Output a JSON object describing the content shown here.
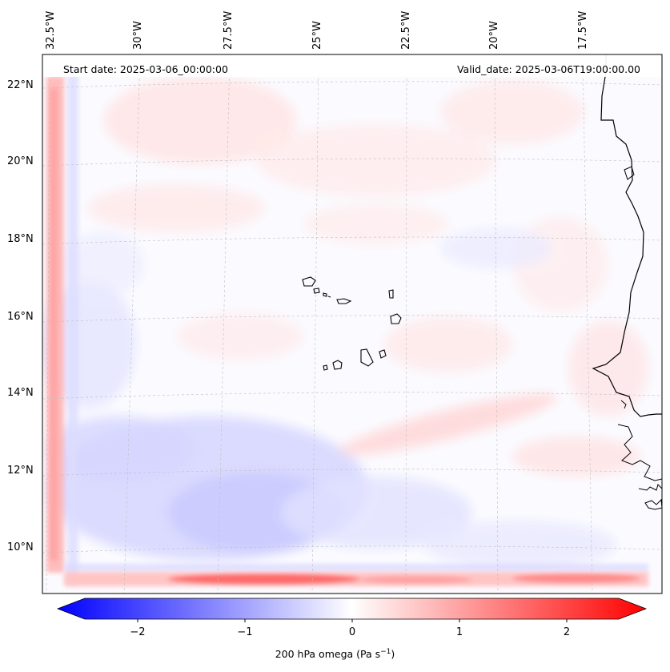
{
  "header": {
    "start_date": "Start date: 2025-03-06_00:00:00",
    "valid_date": "Valid_date: 2025-03-06T19:00:00.00"
  },
  "axes": {
    "longitude_labels": [
      "32.5°W",
      "30°W",
      "27.5°W",
      "25°W",
      "22.5°W",
      "20°W",
      "17.5°W"
    ],
    "latitude_labels": [
      "22°N",
      "20°N",
      "18°N",
      "16°N",
      "14°N",
      "12°N",
      "10°N"
    ]
  },
  "colorbar": {
    "ticks": [
      "−2",
      "−1",
      "0",
      "1",
      "2"
    ],
    "label_prefix": "200 hPa omega (Pa s",
    "label_exponent": "−1",
    "label_suffix": ")",
    "range": [
      -2.6,
      2.6
    ],
    "colors": {
      "negative": "#0000ff",
      "zero": "#ffffff",
      "positive": "#ff0000"
    }
  },
  "chart_data": {
    "type": "heatmap",
    "variable": "200 hPa omega",
    "units": "Pa s^-1",
    "colormap": "bwr",
    "vmin": -2.6,
    "vmax": 2.6,
    "extent_deg": {
      "lon": [
        -33.0,
        -15.5
      ],
      "lat": [
        8.8,
        22.8
      ]
    },
    "features": [
      {
        "name": "south-boundary-band",
        "lat": 9.2,
        "lon_range": [
          -32.0,
          -16.0
        ],
        "peak_value": 1.3
      },
      {
        "name": "west-boundary-band",
        "lon": -32.7,
        "lat_range": [
          9.0,
          22.5
        ],
        "peak_value": 1.2
      },
      {
        "name": "southwest-descending-area",
        "center": [
          -27.5,
          11.3
        ],
        "value": -0.5
      },
      {
        "name": "diagonal-rising-streak",
        "center": [
          -21.0,
          12.8
        ],
        "value": 0.4
      }
    ]
  }
}
